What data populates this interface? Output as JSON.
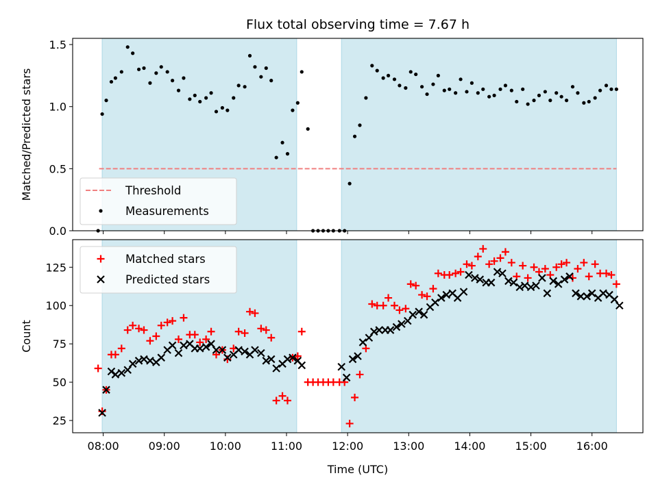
{
  "chart_data": [
    {
      "type": "scatter",
      "title": "Flux total observing time = 7.67 h",
      "xlabel": "",
      "ylabel": "Matched/Predicted stars",
      "xlim": [
        "07:30",
        "16:50"
      ],
      "ylim": [
        0,
        1.55
      ],
      "yticks": [
        "0.0",
        "0.5",
        "1.0",
        "1.5"
      ],
      "shaded_intervals": [
        {
          "start": "07:59",
          "end": "11:10"
        },
        {
          "start": "11:54",
          "end": "16:24"
        }
      ],
      "shade_color": "#add8e6",
      "legend": {
        "position": "lower-left"
      },
      "threshold": {
        "name": "Threshold",
        "value": 0.5,
        "start": "07:56",
        "end": "16:24",
        "color": "#f08080"
      },
      "series": [
        {
          "name": "Measurements",
          "marker": "dot",
          "color": "#000000",
          "x": [
            "07:55",
            "07:59",
            "08:03",
            "08:08",
            "08:12",
            "08:18",
            "08:24",
            "08:29",
            "08:35",
            "08:40",
            "08:46",
            "08:52",
            "08:57",
            "09:03",
            "09:08",
            "09:14",
            "09:19",
            "09:25",
            "09:30",
            "09:35",
            "09:41",
            "09:46",
            "09:51",
            "09:57",
            "10:02",
            "10:08",
            "10:13",
            "10:19",
            "10:24",
            "10:29",
            "10:35",
            "10:40",
            "10:45",
            "10:50",
            "10:56",
            "11:01",
            "11:06",
            "11:11",
            "11:15",
            "11:21",
            "11:26",
            "11:31",
            "11:36",
            "11:41",
            "11:46",
            "11:52",
            "11:57",
            "12:02",
            "12:07",
            "12:12",
            "12:18",
            "12:24",
            "12:29",
            "12:35",
            "12:40",
            "12:46",
            "12:51",
            "12:57",
            "13:02",
            "13:07",
            "13:13",
            "13:18",
            "13:24",
            "13:29",
            "13:35",
            "13:40",
            "13:46",
            "13:51",
            "13:57",
            "14:02",
            "14:08",
            "14:13",
            "14:19",
            "14:24",
            "14:30",
            "14:35",
            "14:41",
            "14:46",
            "14:52",
            "14:57",
            "15:03",
            "15:08",
            "15:14",
            "15:19",
            "15:25",
            "15:30",
            "15:35",
            "15:41",
            "15:46",
            "15:52",
            "15:57",
            "16:03",
            "16:08",
            "16:14",
            "16:19",
            "16:24"
          ],
          "y": [
            0.0,
            0.94,
            1.05,
            1.2,
            1.23,
            1.28,
            1.48,
            1.43,
            1.3,
            1.31,
            1.19,
            1.27,
            1.32,
            1.28,
            1.21,
            1.13,
            1.23,
            1.06,
            1.09,
            1.04,
            1.07,
            1.11,
            0.96,
            0.99,
            0.97,
            1.07,
            1.17,
            1.16,
            1.41,
            1.32,
            1.24,
            1.31,
            1.21,
            0.59,
            0.71,
            0.62,
            0.97,
            1.03,
            1.28,
            0.82,
            0.0,
            0.0,
            0.0,
            0.0,
            0.0,
            0.0,
            0.0,
            0.38,
            0.76,
            0.85,
            1.07,
            1.33,
            1.29,
            1.23,
            1.25,
            1.22,
            1.17,
            1.15,
            1.28,
            1.26,
            1.16,
            1.1,
            1.18,
            1.25,
            1.13,
            1.14,
            1.11,
            1.22,
            1.12,
            1.19,
            1.11,
            1.14,
            1.08,
            1.09,
            1.14,
            1.17,
            1.13,
            1.04,
            1.14,
            1.02,
            1.05,
            1.09,
            1.12,
            1.05,
            1.11,
            1.08,
            1.05,
            1.16,
            1.11,
            1.03,
            1.04,
            1.07,
            1.13,
            1.17,
            1.14,
            1.14
          ]
        }
      ]
    },
    {
      "type": "scatter",
      "title": "",
      "xlabel": "Time (UTC)",
      "ylabel": "Count",
      "xlim": [
        "07:30",
        "16:50"
      ],
      "ylim": [
        17,
        143
      ],
      "xticks": [
        "08:00",
        "09:00",
        "10:00",
        "11:00",
        "12:00",
        "13:00",
        "14:00",
        "15:00",
        "16:00"
      ],
      "yticks": [
        "25",
        "50",
        "75",
        "100",
        "125"
      ],
      "shaded_intervals": [
        {
          "start": "07:59",
          "end": "11:10"
        },
        {
          "start": "11:54",
          "end": "16:24"
        }
      ],
      "shade_color": "#add8e6",
      "legend": {
        "position": "upper-left"
      },
      "series": [
        {
          "name": "Matched stars",
          "marker": "plus",
          "color": "#ff0000",
          "x": [
            "07:55",
            "07:59",
            "08:03",
            "08:08",
            "08:12",
            "08:18",
            "08:24",
            "08:29",
            "08:35",
            "08:40",
            "08:46",
            "08:52",
            "08:57",
            "09:03",
            "09:08",
            "09:14",
            "09:19",
            "09:25",
            "09:30",
            "09:35",
            "09:41",
            "09:46",
            "09:51",
            "09:57",
            "10:02",
            "10:08",
            "10:13",
            "10:19",
            "10:24",
            "10:29",
            "10:35",
            "10:40",
            "10:45",
            "10:50",
            "10:56",
            "11:01",
            "11:06",
            "11:11",
            "11:15",
            "11:21",
            "11:26",
            "11:31",
            "11:36",
            "11:41",
            "11:46",
            "11:52",
            "11:57",
            "12:02",
            "12:07",
            "12:12",
            "12:18",
            "12:24",
            "12:29",
            "12:35",
            "12:40",
            "12:46",
            "12:51",
            "12:57",
            "13:02",
            "13:07",
            "13:13",
            "13:18",
            "13:24",
            "13:29",
            "13:35",
            "13:40",
            "13:46",
            "13:51",
            "13:57",
            "14:02",
            "14:08",
            "14:13",
            "14:19",
            "14:24",
            "14:30",
            "14:35",
            "14:41",
            "14:46",
            "14:52",
            "14:57",
            "15:03",
            "15:08",
            "15:14",
            "15:19",
            "15:25",
            "15:30",
            "15:35",
            "15:41",
            "15:46",
            "15:52",
            "15:57",
            "16:03",
            "16:08",
            "16:14",
            "16:19",
            "16:24"
          ],
          "y": [
            59,
            31,
            45,
            68,
            68,
            72,
            84,
            87,
            85,
            84,
            77,
            80,
            87,
            89,
            90,
            78,
            92,
            81,
            81,
            76,
            78,
            83,
            68,
            71,
            65,
            72,
            83,
            82,
            96,
            95,
            85,
            84,
            79,
            38,
            41,
            38,
            66,
            67,
            83,
            50,
            50,
            50,
            50,
            50,
            50,
            50,
            50,
            23,
            40,
            55,
            72,
            101,
            100,
            100,
            105,
            100,
            97,
            98,
            114,
            113,
            107,
            106,
            111,
            121,
            120,
            120,
            121,
            122,
            127,
            126,
            132,
            137,
            127,
            129,
            131,
            135,
            128,
            119,
            126,
            118,
            125,
            122,
            124,
            120,
            125,
            127,
            128,
            118,
            124,
            128,
            119,
            127,
            121,
            121,
            120,
            114
          ]
        },
        {
          "name": "Predicted stars",
          "marker": "x",
          "color": "#000000",
          "x": [
            "07:59",
            "08:03",
            "08:08",
            "08:12",
            "08:18",
            "08:24",
            "08:29",
            "08:35",
            "08:40",
            "08:46",
            "08:52",
            "08:57",
            "09:03",
            "09:08",
            "09:14",
            "09:19",
            "09:25",
            "09:30",
            "09:35",
            "09:41",
            "09:46",
            "09:51",
            "09:57",
            "10:02",
            "10:08",
            "10:13",
            "10:19",
            "10:24",
            "10:29",
            "10:35",
            "10:40",
            "10:45",
            "10:50",
            "10:56",
            "11:01",
            "11:06",
            "11:11",
            "11:15",
            "11:54",
            "11:59",
            "12:05",
            "12:10",
            "12:15",
            "12:21",
            "12:26",
            "12:31",
            "12:37",
            "12:42",
            "12:48",
            "12:53",
            "12:59",
            "13:04",
            "13:10",
            "13:15",
            "13:21",
            "13:26",
            "13:32",
            "13:37",
            "13:43",
            "13:48",
            "13:54",
            "13:59",
            "14:05",
            "14:10",
            "14:16",
            "14:21",
            "14:27",
            "14:32",
            "14:38",
            "14:43",
            "14:49",
            "14:54",
            "15:00",
            "15:05",
            "15:11",
            "15:16",
            "15:22",
            "15:27",
            "15:33",
            "15:38",
            "15:44",
            "15:49",
            "15:55",
            "16:00",
            "16:06",
            "16:11",
            "16:17",
            "16:22",
            "16:27"
          ],
          "y": [
            30,
            45,
            57,
            55,
            56,
            58,
            62,
            64,
            65,
            64,
            63,
            66,
            71,
            74,
            69,
            74,
            75,
            72,
            72,
            73,
            75,
            71,
            71,
            66,
            68,
            71,
            70,
            68,
            71,
            69,
            64,
            65,
            59,
            62,
            65,
            66,
            64,
            61,
            60,
            53,
            65,
            67,
            76,
            79,
            83,
            84,
            84,
            84,
            86,
            88,
            90,
            94,
            96,
            94,
            99,
            102,
            105,
            107,
            108,
            105,
            109,
            120,
            118,
            117,
            115,
            115,
            122,
            121,
            116,
            115,
            112,
            113,
            112,
            113,
            118,
            108,
            116,
            114,
            117,
            119,
            108,
            106,
            106,
            108,
            105,
            108,
            107,
            104,
            100
          ]
        }
      ]
    }
  ]
}
